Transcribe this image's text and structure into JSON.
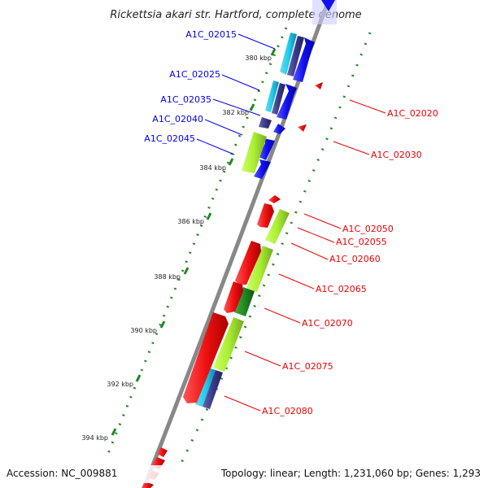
{
  "title": "Rickettsia akari str. Hartford, complete genome",
  "footer": {
    "accession": "Accession: NC_009881",
    "summary": "Topology: linear; Length: 1,231,060 bp; Genes: 1,293"
  },
  "ticks": [
    {
      "label": "380 kbp",
      "value": 380
    },
    {
      "label": "382 kbp",
      "value": 382
    },
    {
      "label": "384 kbp",
      "value": 384
    },
    {
      "label": "386 kbp",
      "value": 386
    },
    {
      "label": "388 kbp",
      "value": 388
    },
    {
      "label": "390 kbp",
      "value": 390
    },
    {
      "label": "392 kbp",
      "value": 392
    },
    {
      "label": "394 kbp",
      "value": 394
    }
  ],
  "left_labels": [
    "A1C_02015",
    "A1C_02025",
    "A1C_02035",
    "A1C_02040",
    "A1C_02045"
  ],
  "right_labels": [
    "A1C_02020",
    "A1C_02030",
    "A1C_02050",
    "A1C_02055",
    "A1C_02060",
    "A1C_02065",
    "A1C_02070",
    "A1C_02075",
    "A1C_02080"
  ],
  "colors": {
    "forward_strand": "#0000ee",
    "reverse_strand": "#ee0000",
    "cds_cyan": "#22ccee",
    "cds_lime": "#aaee33",
    "cds_dark_green": "#228822",
    "cds_navy": "#3a3a8a",
    "backbone": "#888888",
    "tick_dots": "#228822"
  }
}
